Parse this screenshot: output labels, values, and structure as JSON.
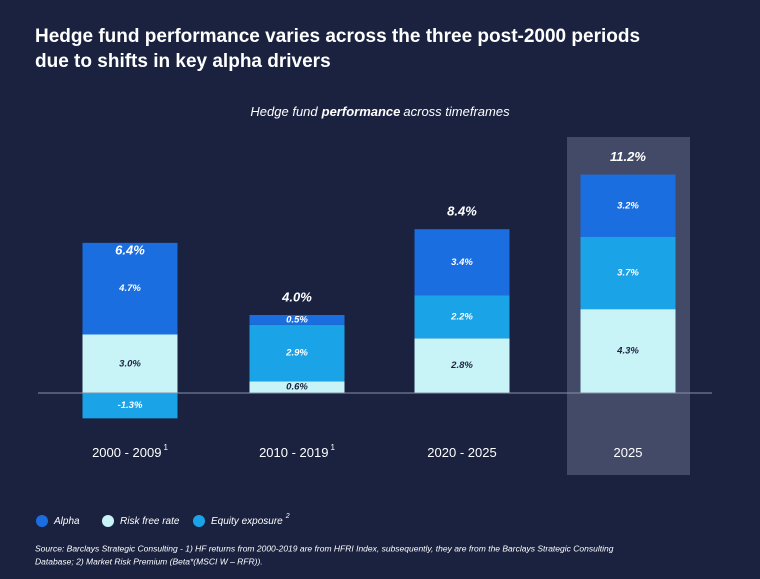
{
  "chart_data": {
    "type": "stacked_bar",
    "title": [
      "Hedge fund performance varies across the three post-2000 periods",
      "due to shifts in key alpha drivers"
    ],
    "subtitle": [
      "Hedge fund",
      "performance",
      "across timeframes"
    ],
    "categories": [
      "2000 - 2009",
      "2010 - 2019",
      "2020 - 2025",
      "2025"
    ],
    "category_notes": [
      "1",
      "1",
      null,
      null
    ],
    "series": [
      {
        "name": "Alpha",
        "color": "#1b6ee0",
        "values": [
          4.7,
          0.5,
          3.4,
          3.2
        ],
        "value_labels": [
          "4.7%",
          "0.5%",
          "3.4%",
          "3.2%"
        ]
      },
      {
        "name": "Risk free rate",
        "color": "#c8f4f7",
        "values": [
          3.0,
          0.6,
          2.8,
          4.3
        ],
        "value_labels": [
          "3.0%",
          "0.6%",
          "2.8%",
          "4.3%"
        ]
      },
      {
        "name": "Equity exposure",
        "note": "2",
        "color": "#1ba3e8",
        "values": [
          -1.3,
          2.9,
          2.2,
          3.7
        ],
        "value_labels": [
          "-1.3%",
          "2.9%",
          "2.2%",
          "3.7%"
        ]
      }
    ],
    "totals": [
      6.4,
      4.0,
      8.4,
      11.2
    ],
    "total_labels": [
      "6.4%",
      "4.0%",
      "8.4%",
      "11.2%"
    ],
    "source": [
      "Source: Barclays Strategic Consulting - 1) HF returns from 2000-2019 are from HFRI Index, subsequently, they are from the Barclays Strategic Consulting",
      "Database; 2) Market Risk Premium (Beta*(MSCI W – RFR))."
    ]
  }
}
